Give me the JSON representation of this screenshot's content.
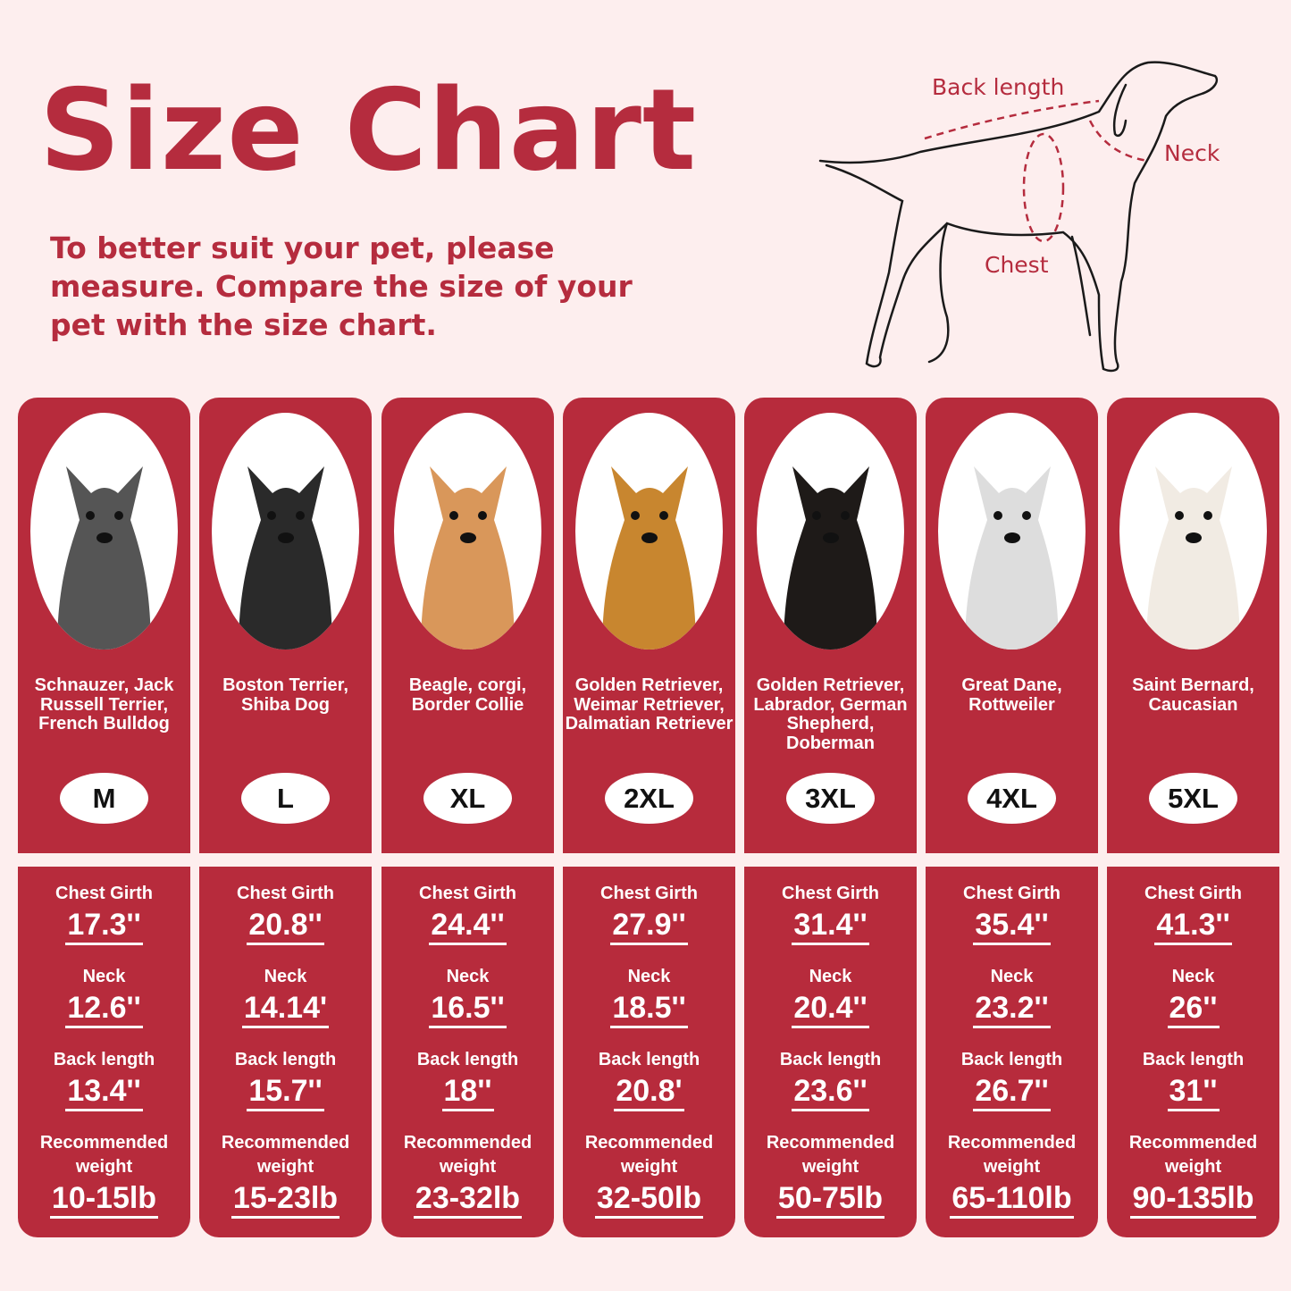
{
  "header": {
    "title": "Size Chart",
    "subtitle": "To better suit your pet, please measure. Compare the size of your pet with the size chart."
  },
  "diagram": {
    "back_length_label": "Back length",
    "neck_label": "Neck",
    "chest_label": "Chest"
  },
  "colors": {
    "accent": "#b72b3c",
    "background": "#fdeeee"
  },
  "labels": {
    "chest_girth": "Chest Girth",
    "neck": "Neck",
    "back_length": "Back length",
    "recommended_weight": "Recommended weight"
  },
  "sizes": [
    {
      "size": "M",
      "breeds": "Schnauzer, Jack Russell Terrier, French Bulldog",
      "chest": "17.3''",
      "neck": "12.6''",
      "back": "13.4''",
      "weight": "10-15lb"
    },
    {
      "size": "L",
      "breeds": "Boston Terrier, Shiba Dog",
      "chest": "20.8''",
      "neck": "14.14'",
      "back": "15.7''",
      "weight": "15-23lb"
    },
    {
      "size": "XL",
      "breeds": "Beagle, corgi, Border Collie",
      "chest": "24.4''",
      "neck": "16.5''",
      "back": "18''",
      "weight": "23-32lb"
    },
    {
      "size": "2XL",
      "breeds": "Golden Retriever, Weimar Retriever, Dalmatian Retriever",
      "chest": "27.9''",
      "neck": "18.5''",
      "back": "20.8'",
      "weight": "32-50lb"
    },
    {
      "size": "3XL",
      "breeds": "Golden Retriever, Labrador, German Shepherd, Doberman",
      "chest": "31.4''",
      "neck": "20.4''",
      "back": "23.6''",
      "weight": "50-75lb"
    },
    {
      "size": "4XL",
      "breeds": "Great Dane, Rottweiler",
      "chest": "35.4''",
      "neck": "23.2''",
      "back": "26.7''",
      "weight": "65-110lb"
    },
    {
      "size": "5XL",
      "breeds": "Saint Bernard, Caucasian",
      "chest": "41.3''",
      "neck": "26''",
      "back": "31''",
      "weight": "90-135lb"
    }
  ]
}
